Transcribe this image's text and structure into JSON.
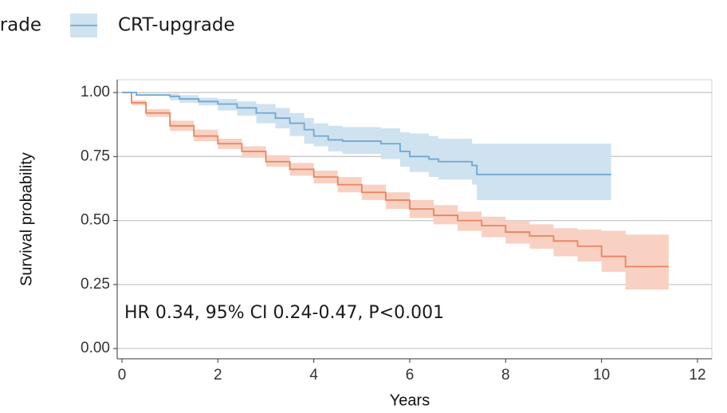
{
  "chart_data": {
    "type": "survival",
    "annotation": "HR 0.34, 95% CI 0.24-0.47, P<0.001",
    "x_label": "Years",
    "y_label": "Survival probability",
    "xlim": [
      -0.1,
      12.3
    ],
    "ylim": [
      -0.04,
      1.05
    ],
    "xticks": [
      0,
      2,
      4,
      6,
      8,
      10,
      12
    ],
    "yticks": [
      {
        "value": 0,
        "label": "0.00"
      },
      {
        "value": 0.25,
        "label": "0.25"
      },
      {
        "value": 0.5,
        "label": "0.50"
      },
      {
        "value": 0.75,
        "label": "0.75"
      },
      {
        "value": 1,
        "label": "1.00"
      }
    ],
    "grid": true,
    "series": [
      {
        "name": "rade",
        "color": "#e8845f",
        "band_color": "#f8d1c2",
        "x": [
          0,
          0.2,
          0.5,
          1,
          1.5,
          2,
          2.5,
          3,
          3.5,
          4,
          4.5,
          5,
          5.5,
          6,
          6.5,
          7,
          7.5,
          8,
          8.5,
          9,
          9.5,
          10,
          10.5,
          11.4
        ],
        "values": [
          1,
          0.96,
          0.92,
          0.87,
          0.83,
          0.8,
          0.77,
          0.73,
          0.7,
          0.67,
          0.64,
          0.61,
          0.58,
          0.545,
          0.52,
          0.5,
          0.48,
          0.455,
          0.44,
          0.42,
          0.4,
          0.36,
          0.32,
          0.32
        ],
        "lower": [
          1,
          0.95,
          0.905,
          0.85,
          0.81,
          0.78,
          0.745,
          0.71,
          0.675,
          0.645,
          0.61,
          0.58,
          0.545,
          0.51,
          0.485,
          0.46,
          0.435,
          0.41,
          0.39,
          0.36,
          0.34,
          0.3,
          0.23,
          0.23
        ],
        "upper": [
          1,
          0.97,
          0.935,
          0.89,
          0.855,
          0.82,
          0.79,
          0.755,
          0.725,
          0.695,
          0.67,
          0.64,
          0.61,
          0.58,
          0.56,
          0.535,
          0.515,
          0.5,
          0.485,
          0.47,
          0.465,
          0.46,
          0.445,
          0.445
        ]
      },
      {
        "name": "CRT-upgrade",
        "color": "#6fa8d2",
        "band_color": "#cfe2f0",
        "x": [
          0,
          0.3,
          1,
          1.2,
          1.6,
          2,
          2.4,
          2.8,
          3.2,
          3.5,
          3.8,
          4,
          4.3,
          4.6,
          5.4,
          5.8,
          6,
          6.4,
          6.6,
          7.3,
          7.4,
          10.2
        ],
        "values": [
          1,
          0.99,
          0.985,
          0.975,
          0.965,
          0.955,
          0.94,
          0.92,
          0.9,
          0.88,
          0.855,
          0.83,
          0.815,
          0.81,
          0.8,
          0.77,
          0.75,
          0.74,
          0.73,
          0.715,
          0.68,
          0.68
        ],
        "lower": [
          1,
          0.99,
          0.97,
          0.96,
          0.95,
          0.93,
          0.91,
          0.88,
          0.86,
          0.83,
          0.8,
          0.79,
          0.77,
          0.76,
          0.74,
          0.71,
          0.69,
          0.67,
          0.66,
          0.64,
          0.58,
          0.58
        ],
        "upper": [
          1,
          0.995,
          0.995,
          0.99,
          0.98,
          0.975,
          0.965,
          0.955,
          0.94,
          0.92,
          0.9,
          0.88,
          0.87,
          0.865,
          0.86,
          0.845,
          0.84,
          0.83,
          0.82,
          0.8,
          0.8,
          0.8
        ]
      }
    ]
  }
}
